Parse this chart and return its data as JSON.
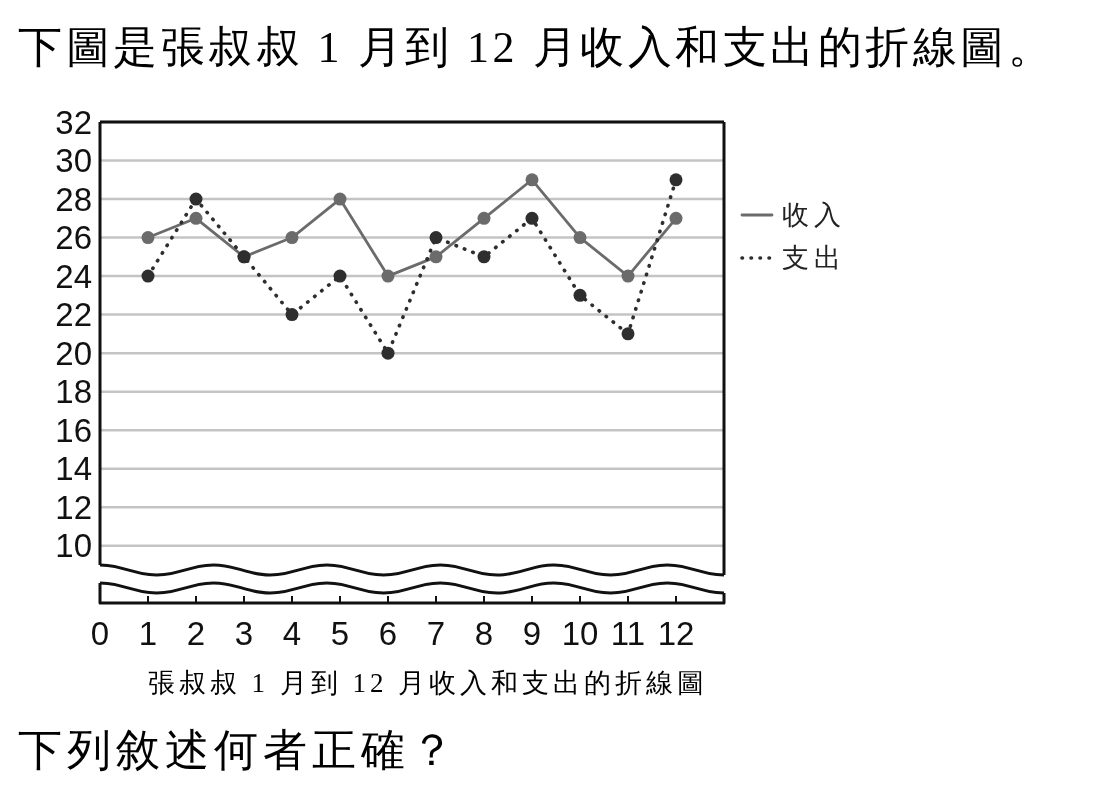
{
  "chart_data": {
    "type": "line",
    "title": "下圖是張叔叔 1 月到 12 月收入和支出的折線圖。",
    "x": [
      1,
      2,
      3,
      4,
      5,
      6,
      7,
      8,
      9,
      10,
      11,
      12
    ],
    "xlim": [
      0,
      13
    ],
    "xticks": [
      0,
      1,
      2,
      3,
      4,
      5,
      6,
      7,
      8,
      9,
      10,
      11,
      12
    ],
    "ylim": [
      9,
      32
    ],
    "yticks": [
      10,
      12,
      14,
      16,
      18,
      20,
      22,
      24,
      26,
      28,
      30,
      32
    ],
    "series": [
      {
        "name": "收入",
        "color": "#6b6b6b",
        "line_style": "solid",
        "values": [
          26,
          27,
          25,
          26,
          28,
          24,
          25,
          27,
          29,
          26,
          24,
          27
        ]
      },
      {
        "name": "支出",
        "color": "#2e2e2e",
        "line_style": "dotted",
        "values": [
          24,
          28,
          25,
          22,
          24,
          20,
          26,
          25,
          27,
          23,
          21,
          29
        ]
      }
    ],
    "marker": "circle",
    "grid": "y",
    "legend": "right",
    "annotations": [
      "張叔叔 1 月到 12 月收入和支出的折線圖",
      "下列敘述何者正確？"
    ]
  }
}
